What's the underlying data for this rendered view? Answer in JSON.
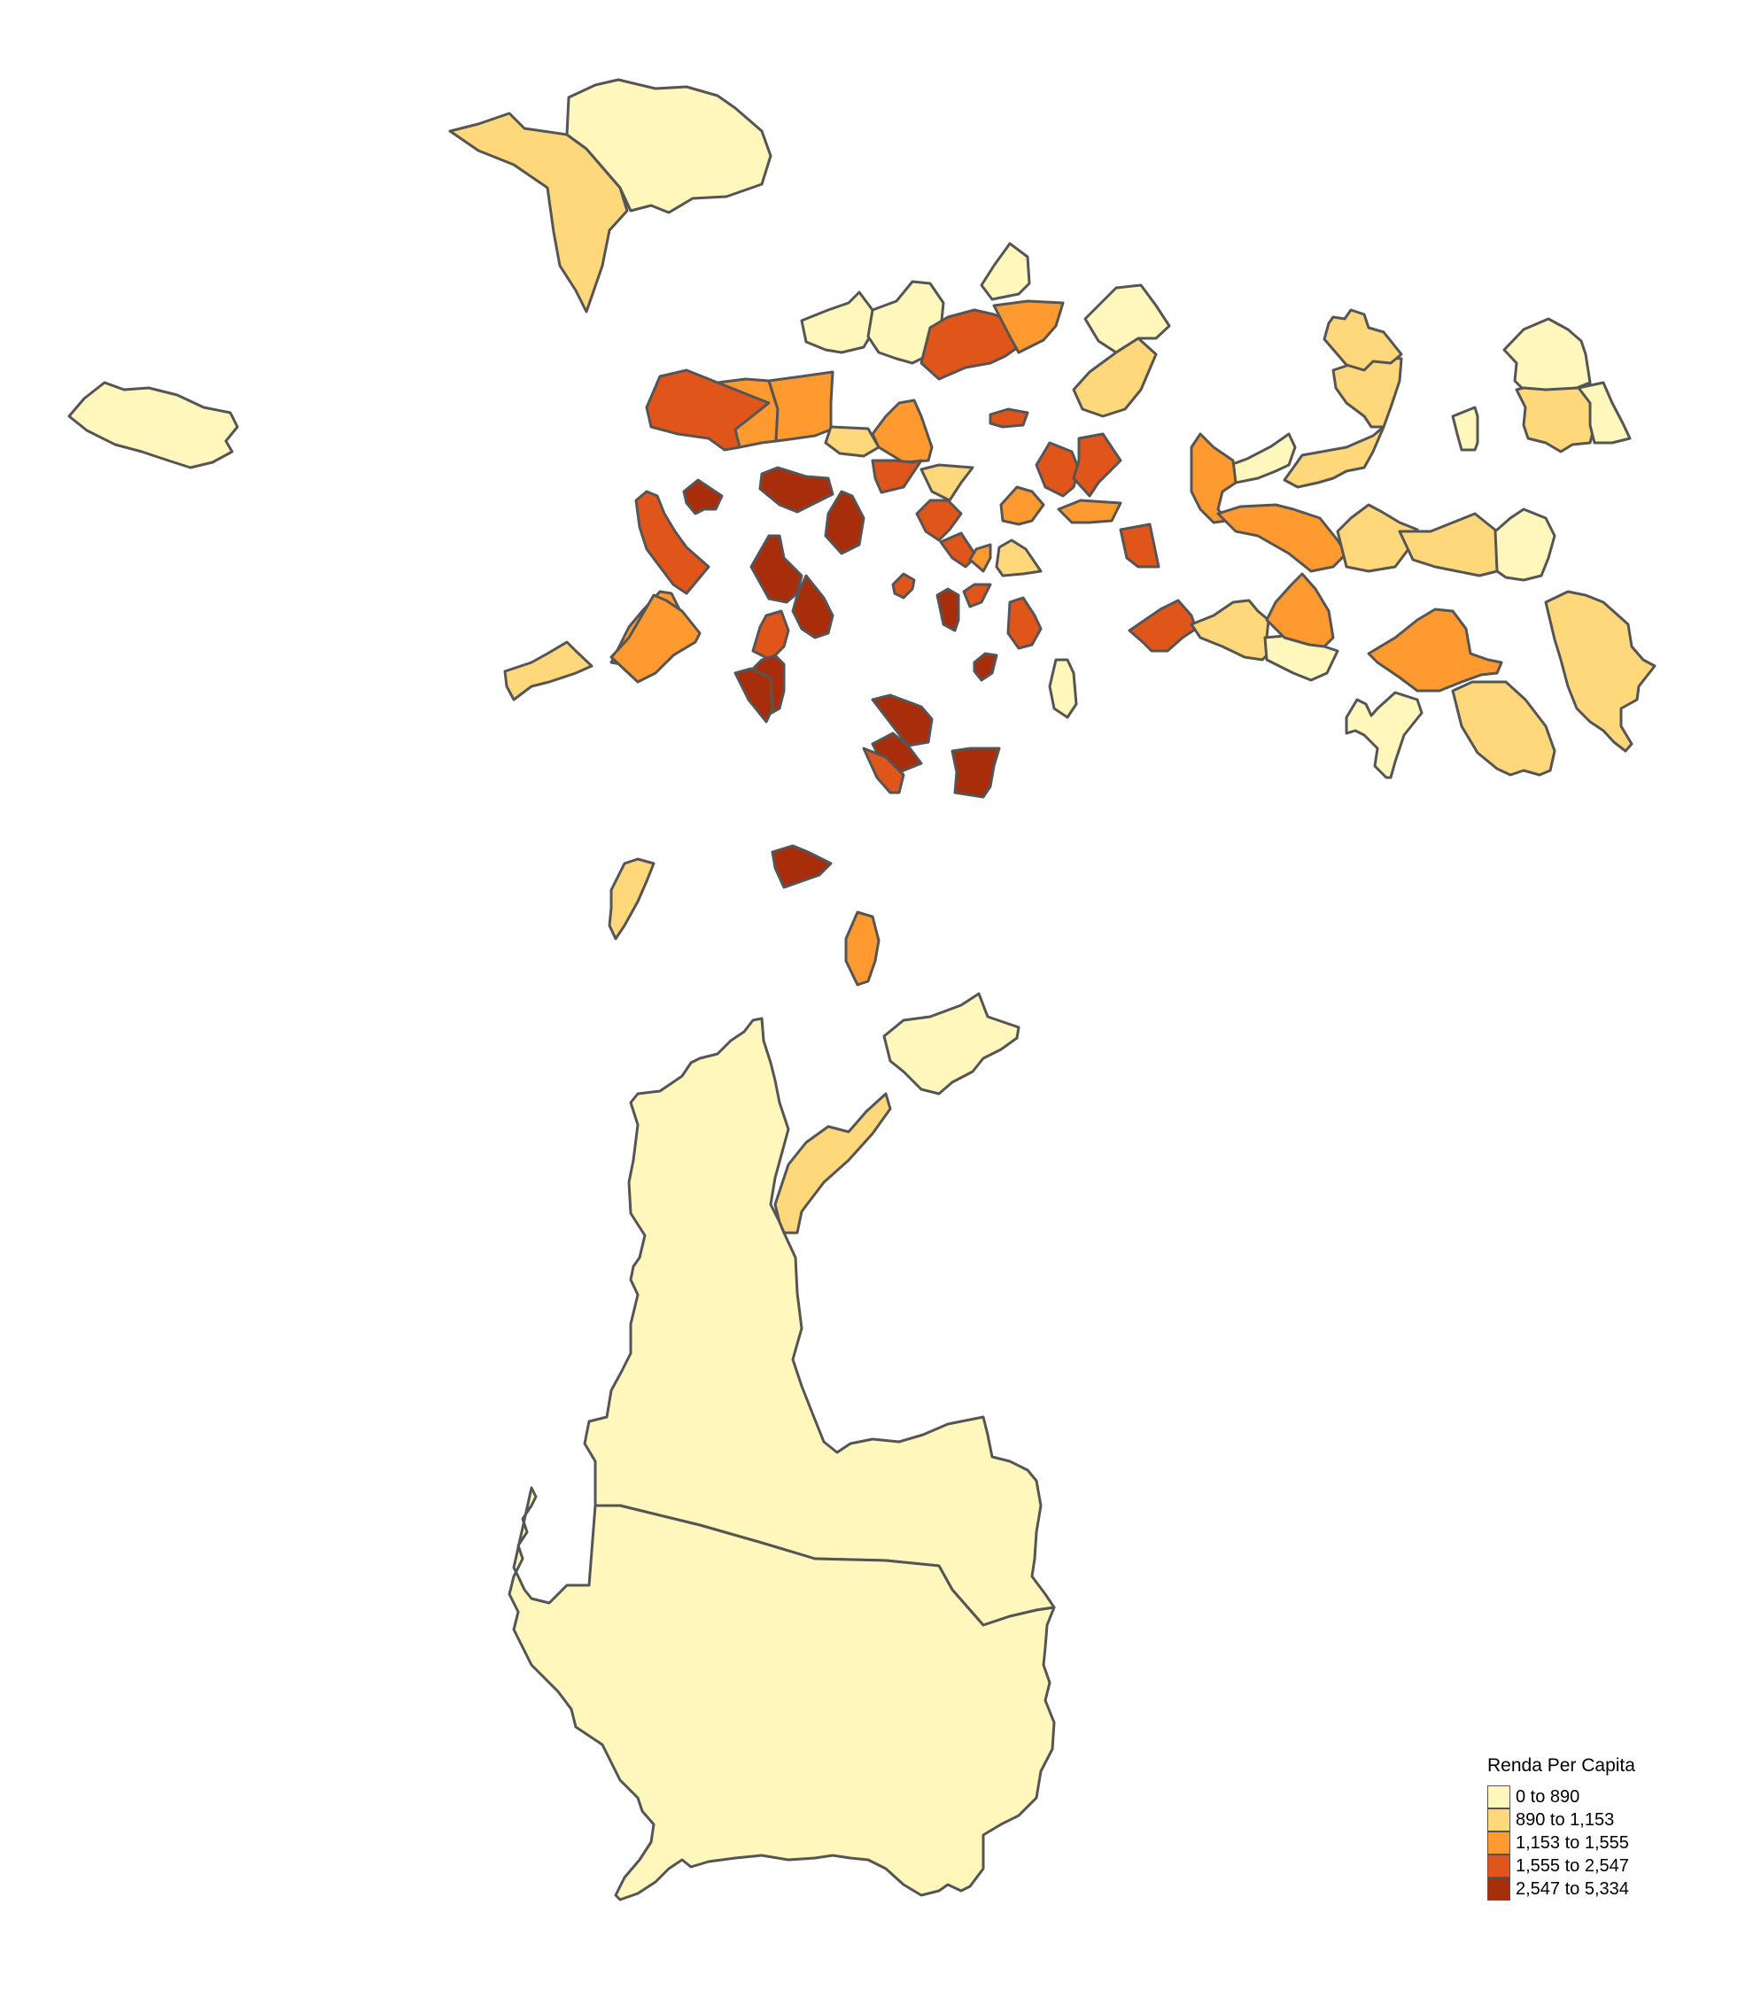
{
  "legend": {
    "title": "Renda Per Capita",
    "classes": [
      {
        "label": "0 to 890",
        "color": "#FFF7BC"
      },
      {
        "label": "890 to 1,153",
        "color": "#FED87A"
      },
      {
        "label": "1,153 to 1,555",
        "color": "#FE9A30"
      },
      {
        "label": "1,555 to 2,547",
        "color": "#E0561A"
      },
      {
        "label": "2,547 to 5,334",
        "color": "#A82E0B"
      }
    ]
  },
  "regions": [
    {
      "name": "region-far-west-island",
      "class": 0
    },
    {
      "name": "region-north-west-coast",
      "class": 1
    },
    {
      "name": "region-north-plateau",
      "class": 0
    },
    {
      "name": "region-north-a",
      "class": 0
    },
    {
      "name": "region-north-b",
      "class": 0
    },
    {
      "name": "region-north-c",
      "class": 0
    },
    {
      "name": "region-north-d",
      "class": 3
    },
    {
      "name": "region-north-e",
      "class": 2
    },
    {
      "name": "region-north-f",
      "class": 0
    },
    {
      "name": "region-north-g",
      "class": 1
    },
    {
      "name": "region-center-west-1",
      "class": 3
    },
    {
      "name": "region-center-west-2",
      "class": 2
    },
    {
      "name": "region-center-west-3",
      "class": 2
    },
    {
      "name": "region-center-west-4",
      "class": 1
    },
    {
      "name": "region-center-west-5",
      "class": 2
    },
    {
      "name": "region-center-small-1",
      "class": 3
    },
    {
      "name": "region-center-1",
      "class": 4
    },
    {
      "name": "region-center-2",
      "class": 4
    },
    {
      "name": "region-center-3",
      "class": 4
    },
    {
      "name": "region-center-4",
      "class": 4
    },
    {
      "name": "region-center-5",
      "class": 1
    },
    {
      "name": "region-center-6",
      "class": 3
    },
    {
      "name": "region-center-7",
      "class": 3
    },
    {
      "name": "region-center-8",
      "class": 3
    },
    {
      "name": "region-center-9",
      "class": 1
    },
    {
      "name": "region-center-10",
      "class": 2
    },
    {
      "name": "region-center-11",
      "class": 3
    },
    {
      "name": "region-center-12",
      "class": 2
    },
    {
      "name": "region-center-13",
      "class": 2
    },
    {
      "name": "region-center-14",
      "class": 3
    },
    {
      "name": "region-west-1",
      "class": 3
    },
    {
      "name": "region-west-2",
      "class": 2
    },
    {
      "name": "region-west-3",
      "class": 1
    },
    {
      "name": "region-core-1",
      "class": 4
    },
    {
      "name": "region-core-2",
      "class": 4
    },
    {
      "name": "region-core-3",
      "class": 3
    },
    {
      "name": "region-core-4",
      "class": 4
    },
    {
      "name": "region-core-5",
      "class": 4
    },
    {
      "name": "region-core-6",
      "class": 4
    },
    {
      "name": "region-core-7",
      "class": 3
    },
    {
      "name": "region-core-8",
      "class": 4
    },
    {
      "name": "region-core-9",
      "class": 2
    },
    {
      "name": "region-core-10",
      "class": 3
    },
    {
      "name": "region-core-11",
      "class": 3
    },
    {
      "name": "region-south-1",
      "class": 4
    },
    {
      "name": "region-south-2",
      "class": 3
    },
    {
      "name": "region-south-3",
      "class": 4
    },
    {
      "name": "region-south-4",
      "class": 3
    },
    {
      "name": "region-south-5",
      "class": 4
    },
    {
      "name": "region-south-6",
      "class": 1
    },
    {
      "name": "region-south-7",
      "class": 2
    },
    {
      "name": "region-south-8",
      "class": 0
    },
    {
      "name": "region-south-9",
      "class": 1
    },
    {
      "name": "region-east-1",
      "class": 0
    },
    {
      "name": "region-east-2",
      "class": 1
    },
    {
      "name": "region-east-3",
      "class": 1
    },
    {
      "name": "region-east-4",
      "class": 2
    },
    {
      "name": "region-east-5",
      "class": 2
    },
    {
      "name": "region-east-6",
      "class": 3
    },
    {
      "name": "region-east-7",
      "class": 1
    },
    {
      "name": "region-east-8",
      "class": 0
    },
    {
      "name": "region-east-9",
      "class": 2
    },
    {
      "name": "region-east-10",
      "class": 1
    },
    {
      "name": "region-east-11",
      "class": 1
    },
    {
      "name": "region-east-12",
      "class": 0
    },
    {
      "name": "region-east-13",
      "class": 2
    },
    {
      "name": "region-east-14",
      "class": 1
    },
    {
      "name": "region-east-15",
      "class": 0
    },
    {
      "name": "region-east-16",
      "class": 1
    },
    {
      "name": "region-east-17",
      "class": 1
    },
    {
      "name": "region-east-18",
      "class": 0
    },
    {
      "name": "region-east-19",
      "class": 0
    },
    {
      "name": "region-east-20",
      "class": 1
    },
    {
      "name": "region-east-21",
      "class": 0
    },
    {
      "name": "region-south-large-north",
      "class": 0
    },
    {
      "name": "region-south-large-south",
      "class": 0
    }
  ]
}
